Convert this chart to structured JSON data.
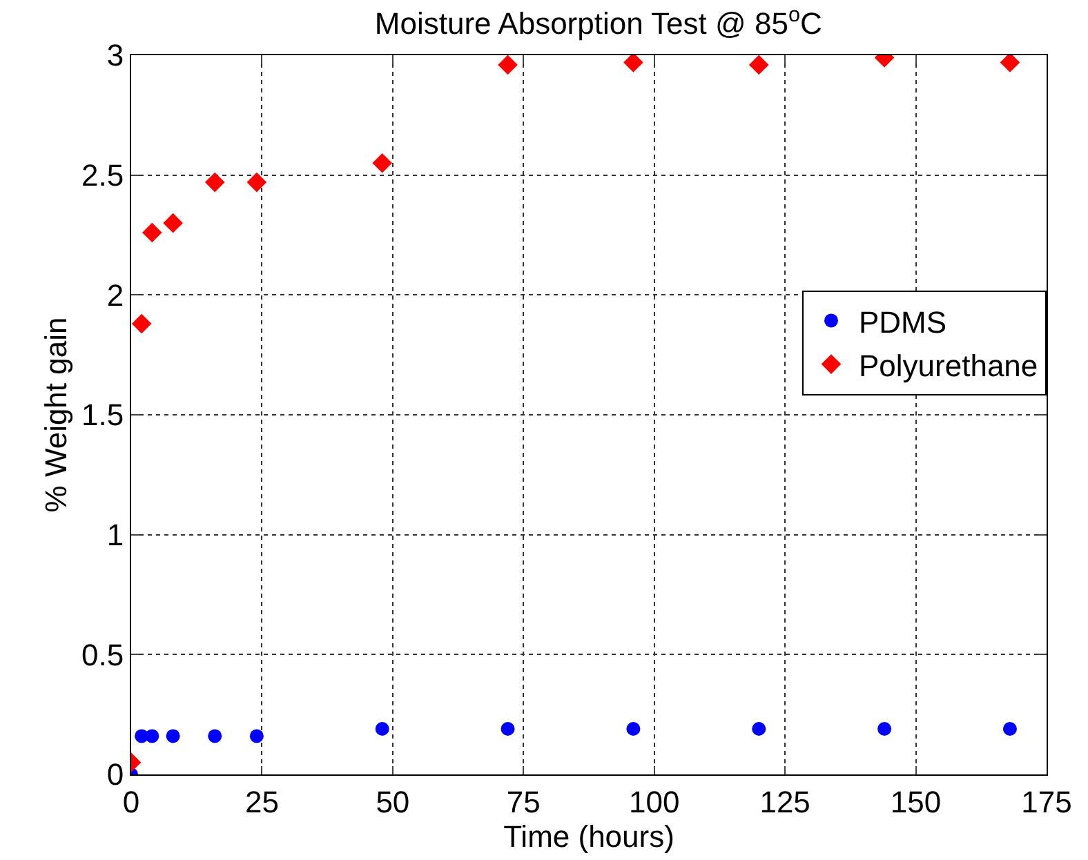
{
  "chart_data": {
    "type": "scatter",
    "title": "Moisture Absorption Test @ 85$^{o}$C",
    "xlabel": "Time (hours)",
    "ylabel": "% Weight gain",
    "x": [
      0,
      2,
      4,
      8,
      16,
      24,
      48,
      72,
      96,
      120,
      144,
      168
    ],
    "series": [
      {
        "name": "PDMS",
        "color": "#0000ff",
        "marker": "circle",
        "values": [
          0.0,
          0.16,
          0.16,
          0.16,
          0.16,
          0.16,
          0.19,
          0.19,
          0.19,
          0.19,
          0.19,
          0.19
        ]
      },
      {
        "name": "Polyurethane",
        "color": "#ff0000",
        "marker": "diamond",
        "values": [
          0.05,
          1.88,
          2.26,
          2.3,
          2.47,
          2.47,
          2.55,
          2.96,
          2.97,
          2.96,
          2.99,
          2.97
        ]
      }
    ],
    "xlim": [
      0,
      175
    ],
    "xticks": [
      0,
      25,
      50,
      75,
      100,
      125,
      150,
      175
    ],
    "ylim": [
      0,
      3
    ],
    "yticks": [
      0,
      0.5,
      1,
      1.5,
      2,
      2.5,
      3
    ],
    "grid": true,
    "legend": "right"
  }
}
